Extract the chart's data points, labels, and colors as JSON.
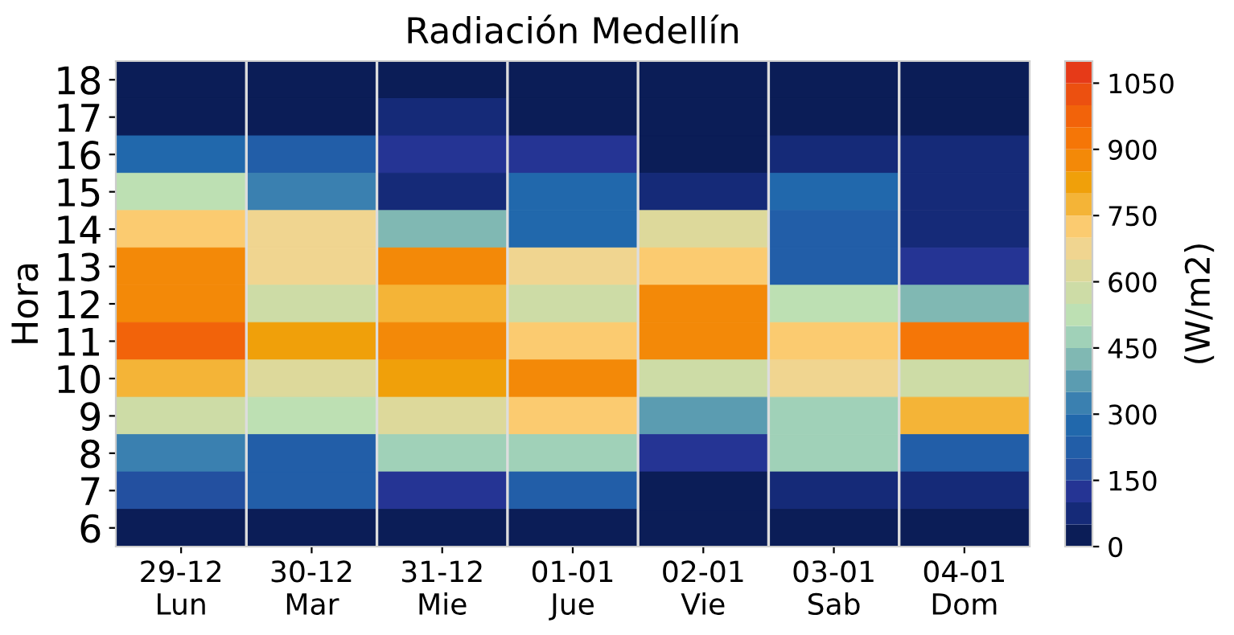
{
  "chart_data": {
    "type": "heatmap",
    "title": "Radiación Medellín",
    "ylabel": "Hora",
    "clabel": "(W/m2)",
    "categories": [
      "29-12\nLun",
      "30-12\nMar",
      "31-12\nMie",
      "01-01\nJue",
      "02-01\nVie",
      "03-01\nSab",
      "04-01\nDom"
    ],
    "y_categories": [
      "18",
      "17",
      "16",
      "15",
      "14",
      "13",
      "12",
      "11",
      "10",
      "9",
      "8",
      "7",
      "6"
    ],
    "cells": [
      [
        25,
        25,
        25,
        25,
        25,
        25,
        25
      ],
      [
        25,
        25,
        75,
        25,
        25,
        25,
        25
      ],
      [
        275,
        225,
        125,
        125,
        25,
        75,
        75
      ],
      [
        525,
        325,
        75,
        275,
        75,
        275,
        75
      ],
      [
        725,
        675,
        425,
        275,
        625,
        225,
        75
      ],
      [
        875,
        675,
        875,
        675,
        725,
        225,
        125
      ],
      [
        875,
        575,
        775,
        575,
        875,
        525,
        425
      ],
      [
        975,
        825,
        875,
        725,
        875,
        725,
        925
      ],
      [
        775,
        625,
        825,
        875,
        575,
        675,
        575
      ],
      [
        575,
        525,
        625,
        725,
        375,
        475,
        775
      ],
      [
        325,
        225,
        475,
        475,
        125,
        475,
        225
      ],
      [
        175,
        225,
        125,
        225,
        25,
        75,
        75
      ],
      [
        25,
        25,
        25,
        25,
        25,
        25,
        25
      ]
    ],
    "clim": [
      0,
      1100
    ],
    "cticks": [
      0,
      150,
      300,
      450,
      600,
      750,
      900,
      1050
    ],
    "colors": [
      "#0b1d57",
      "#152a78",
      "#253494",
      "#2350a0",
      "#225ea8",
      "#2168ac",
      "#3a80b0",
      "#5b9cb1",
      "#80b8b3",
      "#a0d1b8",
      "#bde0b3",
      "#cddca6",
      "#ddd99b",
      "#f0d590",
      "#fbcb70",
      "#f4b437",
      "#f0a00a",
      "#f38908",
      "#f57607",
      "#f2630a",
      "#ec5010",
      "#e63a18"
    ],
    "grid": "x"
  }
}
